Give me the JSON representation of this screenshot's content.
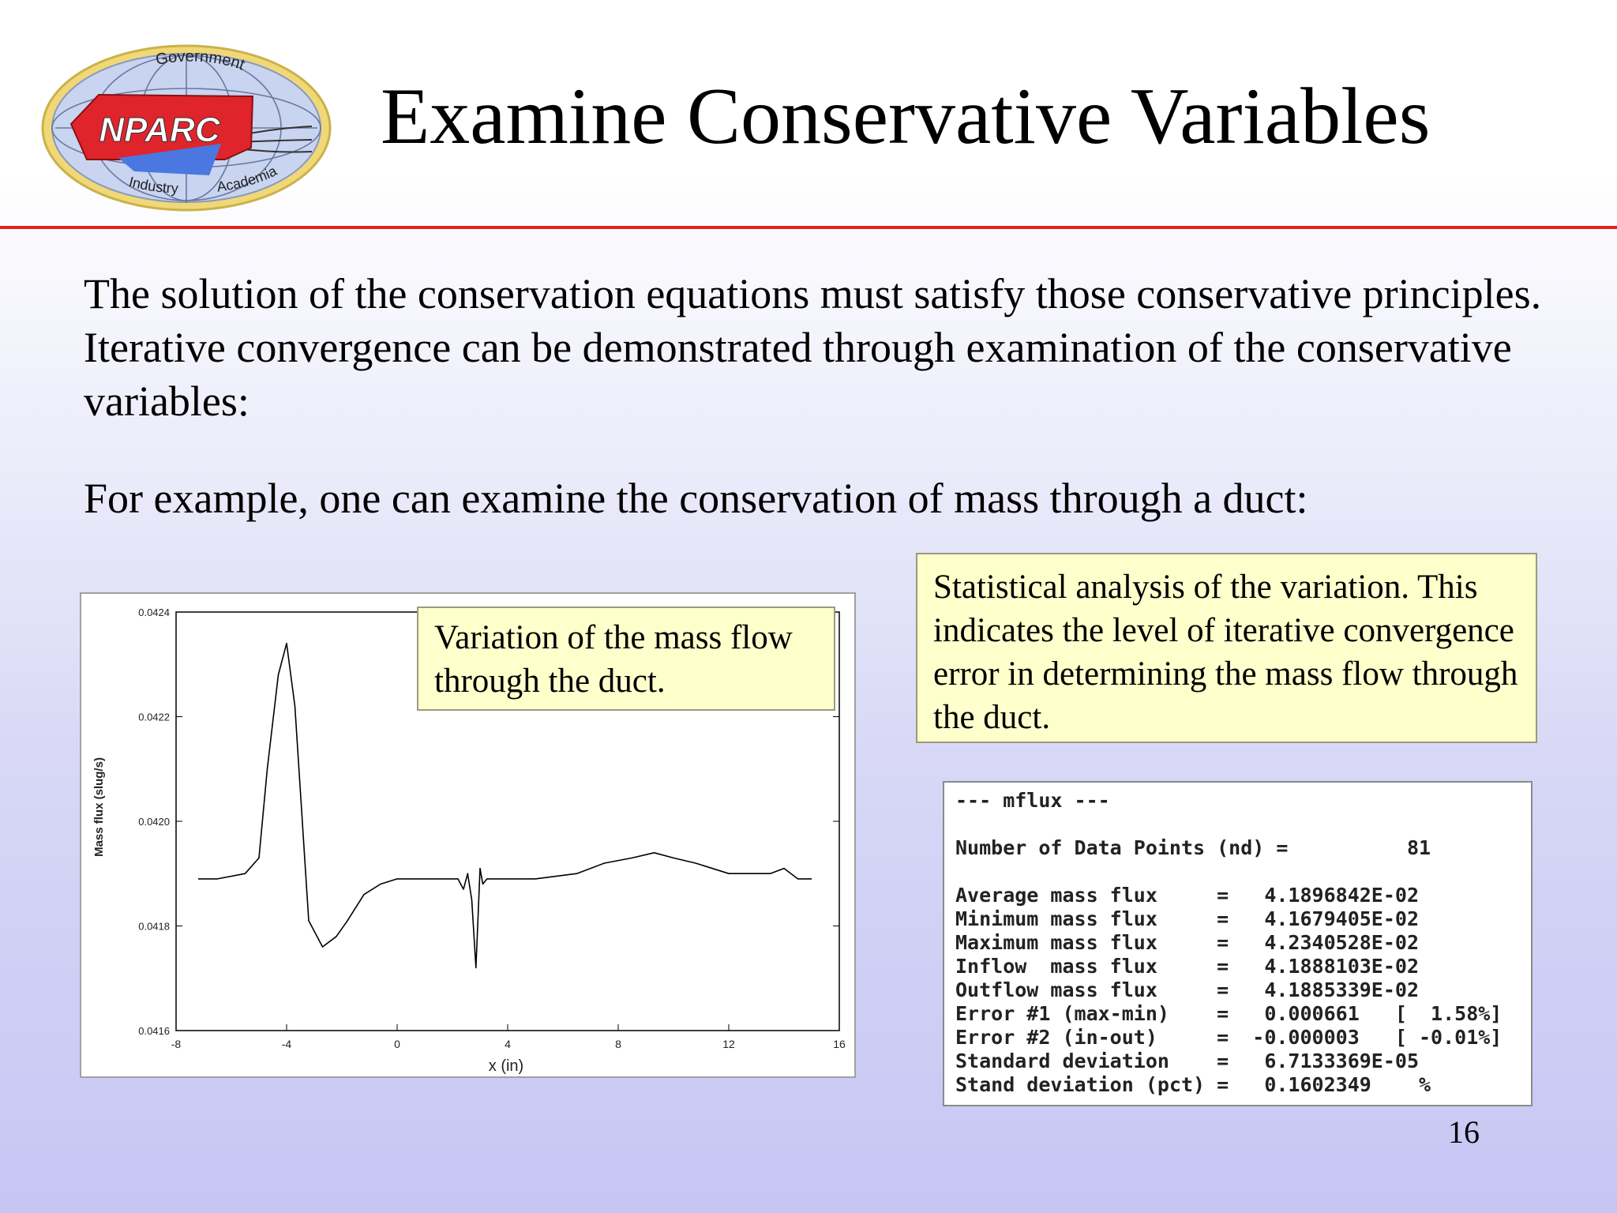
{
  "slide": {
    "title": "Examine Conservative Variables",
    "paragraph_1": "The solution of the conservation equations must satisfy those conservative principles.  Iterative convergence can be demonstrated through examination of the conservative variables:",
    "paragraph_2": "For example, one can examine the conservation of mass through a duct:",
    "callout_chart": "Variation of the mass flow through the duct.",
    "callout_stats": "Statistical analysis of the variation. This indicates the level of iterative convergence error in determining the mass flow through the duct.",
    "page_number": "16"
  },
  "logo": {
    "text": "NPARC",
    "ring_top": "Government",
    "ring_bottom_left": "Industry",
    "ring_bottom_right": "Academia",
    "colors": {
      "ring": "#c8d4f0",
      "banner": "#e0242c",
      "wing": "#4a78e0"
    }
  },
  "stats": {
    "header": "--- mflux ---",
    "nd_line": "Number of Data Points (nd) =          81",
    "lines": [
      "Average mass flux     =   4.1896842E-02",
      "Minimum mass flux     =   4.1679405E-02",
      "Maximum mass flux     =   4.2340528E-02",
      "Inflow  mass flux     =   4.1888103E-02",
      "Outflow mass flux     =   4.1885339E-02",
      "Error #1 (max-min)    =   0.000661   [  1.58%]",
      "Error #2 (in-out)     =  -0.000003   [ -0.01%]",
      "Standard deviation    =   6.7133369E-05",
      "Stand deviation (pct) =   0.1602349    %"
    ]
  },
  "chart_data": {
    "type": "line",
    "xlabel": "x (in)",
    "ylabel": "Mass flux (slug/s)",
    "xlim": [
      -8,
      16
    ],
    "ylim": [
      0.0416,
      0.0424
    ],
    "xticks": [
      "-8",
      "-4",
      "0",
      "4",
      "8",
      "12",
      "16"
    ],
    "yticks": [
      "0.0424",
      "0.0422",
      "0.0420",
      "0.0418",
      "0.0416"
    ],
    "line_color": "#000000",
    "series": [
      {
        "x": [
          -7.2,
          -6.5,
          -5.5,
          -5.0,
          -4.7,
          -4.3,
          -4.0,
          -3.7,
          -3.2,
          -2.7,
          -2.2,
          -1.8,
          -1.2,
          -0.6,
          0.0,
          0.7,
          1.5,
          2.2,
          2.4,
          2.55,
          2.7,
          2.85,
          3.0,
          3.1,
          3.25,
          3.4,
          3.6,
          4.0,
          5.0,
          6.5,
          7.5,
          8.5,
          9.3,
          10.0,
          10.8,
          12.0,
          13.0,
          13.5,
          14.0,
          14.5,
          15.0
        ],
        "y": [
          0.04189,
          0.04189,
          0.0419,
          0.04193,
          0.0421,
          0.04228,
          0.04234,
          0.04222,
          0.04181,
          0.04176,
          0.04178,
          0.04181,
          0.04186,
          0.04188,
          0.04189,
          0.04189,
          0.04189,
          0.04189,
          0.04187,
          0.0419,
          0.04185,
          0.04172,
          0.04191,
          0.04188,
          0.04189,
          0.04189,
          0.04189,
          0.04189,
          0.04189,
          0.0419,
          0.04192,
          0.04193,
          0.04194,
          0.04193,
          0.04192,
          0.0419,
          0.0419,
          0.0419,
          0.04191,
          0.04189,
          0.04189
        ]
      }
    ]
  }
}
